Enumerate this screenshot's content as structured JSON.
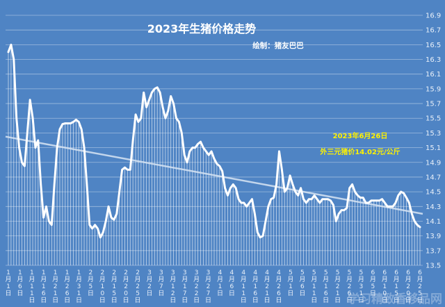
{
  "chart_data": {
    "type": "line",
    "title": "2023年生猪价格走势",
    "subtitle": "绘制：猪友巴巴",
    "annotation": [
      "2023年6月26日",
      "外三元猪价14.02元/公斤"
    ],
    "watermark": "学习精致香移品网",
    "ylim": [
      13.5,
      16.9
    ],
    "yticks": [
      13.5,
      13.7,
      13.9,
      14.1,
      14.3,
      14.5,
      14.7,
      14.9,
      15.1,
      15.3,
      15.5,
      15.7,
      15.9,
      16.1,
      16.3,
      16.5,
      16.7,
      16.9
    ],
    "xticks": [
      "1月1日",
      "1月6日",
      "1月11日",
      "1月16日",
      "1月21日",
      "1月26日",
      "1月31日",
      "2月5日",
      "2月10日",
      "2月15日",
      "2月20日",
      "2月25日",
      "3月2日",
      "3月7日",
      "3月12日",
      "3月17日",
      "3月22日",
      "3月27日",
      "4月1日",
      "4月6日",
      "4月11日",
      "4月16日",
      "4月21日",
      "4月26日",
      "5月1日",
      "5月6日",
      "5月11日",
      "5月16日",
      "5月21日",
      "5月26日",
      "5月31日",
      "6月5日",
      "6月10日",
      "6月15日",
      "6月20日",
      "6月25日"
    ],
    "trendline": {
      "start": 15.25,
      "end": 14.2
    },
    "series": [
      {
        "values": [
          16.4,
          16.5,
          16.3,
          15.5,
          15.1,
          14.9,
          14.85,
          15.3,
          15.75,
          15.5,
          15.1,
          15.2,
          14.6,
          14.15,
          14.3,
          14.1,
          14.05,
          14.6,
          15.1,
          15.35,
          15.42,
          15.43,
          15.43,
          15.43,
          15.45,
          15.48,
          15.45,
          15.35,
          15.1,
          14.6,
          14.05,
          14.0,
          14.05,
          14.0,
          13.88,
          13.95,
          14.1,
          14.3,
          14.15,
          14.12,
          14.2,
          14.5,
          14.8,
          14.83,
          14.8,
          14.8,
          15.2,
          15.55,
          15.45,
          15.5,
          15.85,
          15.65,
          15.75,
          15.85,
          15.9,
          15.92,
          15.85,
          15.65,
          15.5,
          15.6,
          15.8,
          15.7,
          15.5,
          15.45,
          15.3,
          15.0,
          14.9,
          15.05,
          15.1,
          15.1,
          15.15,
          15.18,
          15.1,
          15.05,
          15.0,
          15.05,
          14.95,
          14.88,
          14.85,
          14.78,
          14.55,
          14.45,
          14.55,
          14.6,
          14.55,
          14.4,
          14.35,
          14.35,
          14.3,
          14.35,
          14.4,
          14.2,
          13.95,
          13.88,
          13.9,
          14.1,
          14.3,
          14.4,
          14.42,
          14.6,
          15.05,
          14.8,
          14.5,
          14.55,
          14.72,
          14.6,
          14.5,
          14.45,
          14.55,
          14.4,
          14.35,
          14.4,
          14.4,
          14.45,
          14.4,
          14.35,
          14.4,
          14.4,
          14.4,
          14.38,
          14.32,
          14.1,
          14.2,
          14.25,
          14.25,
          14.28,
          14.55,
          14.6,
          14.5,
          14.45,
          14.42,
          14.42,
          14.35,
          14.35,
          14.38,
          14.38,
          14.38,
          14.38,
          14.4,
          14.35,
          14.3,
          14.3,
          14.3,
          14.35,
          14.45,
          14.5,
          14.48,
          14.42,
          14.35,
          14.2,
          14.1,
          14.05,
          14.02
        ]
      }
    ]
  }
}
